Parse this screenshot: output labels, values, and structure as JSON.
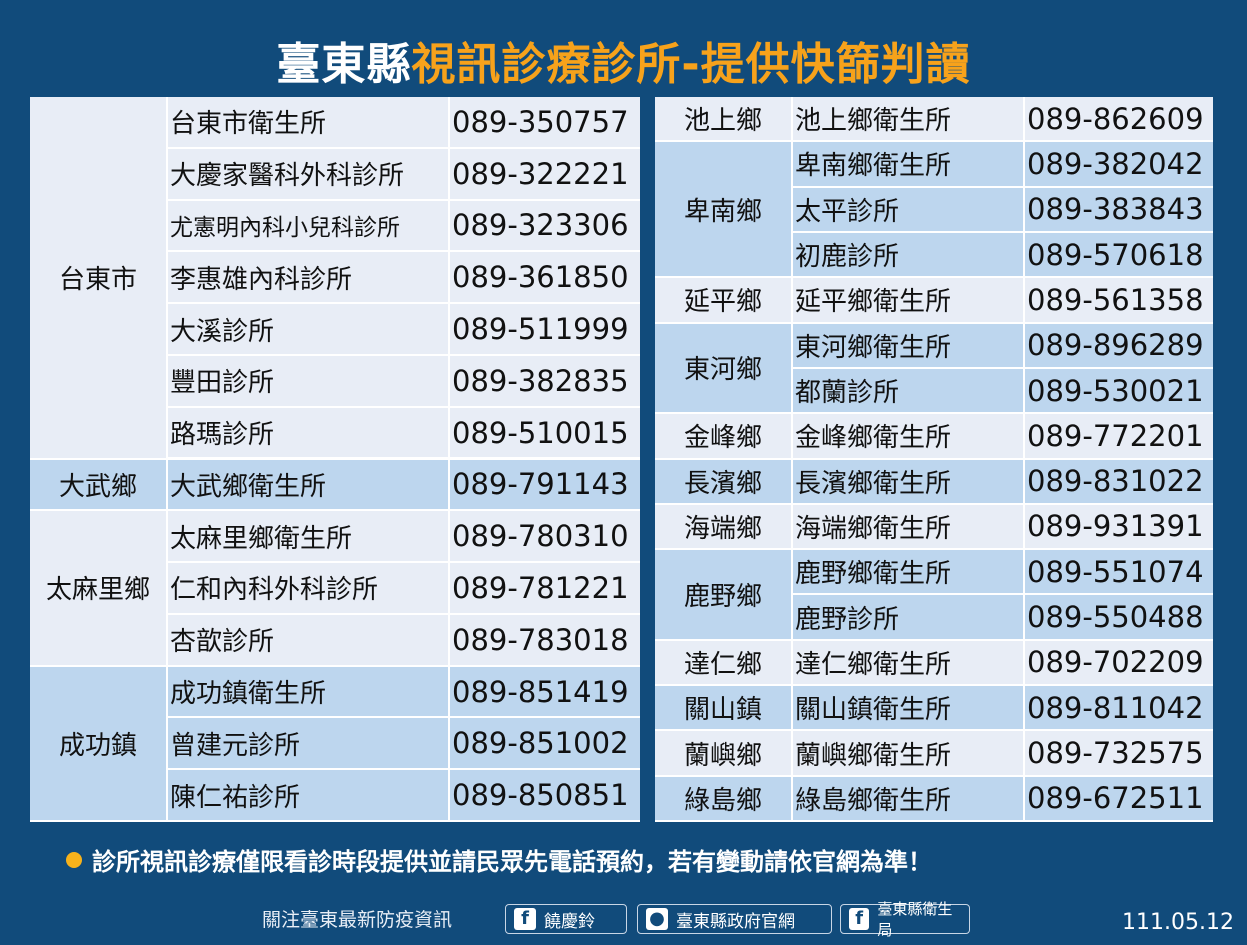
{
  "header": {
    "title_part1": "臺東縣",
    "title_part2": "視訊診療診所-提供快篩判讀"
  },
  "left_table": {
    "groups": [
      {
        "township": "台東市",
        "rows": [
          [
            "台東市衛生所",
            "089-350757"
          ],
          [
            "大慶家醫科外科診所",
            "089-322221"
          ],
          [
            "尤憲明內科小兒科診所",
            "089-323306"
          ],
          [
            "李惠雄內科診所",
            "089-361850"
          ],
          [
            "大溪診所",
            "089-511999"
          ],
          [
            "豐田診所",
            "089-382835"
          ],
          [
            "路瑪診所",
            "089-510015"
          ]
        ]
      },
      {
        "township": "大武鄉",
        "rows": [
          [
            "大武鄉衛生所",
            "089-791143"
          ]
        ]
      },
      {
        "township": "太麻里鄉",
        "rows": [
          [
            "太麻里鄉衛生所",
            "089-780310"
          ],
          [
            "仁和內科外科診所",
            "089-781221"
          ],
          [
            "杏歆診所",
            "089-783018"
          ]
        ]
      },
      {
        "township": "成功鎮",
        "rows": [
          [
            "成功鎮衛生所",
            "089-851419"
          ],
          [
            "曾建元診所",
            "089-851002"
          ],
          [
            "陳仁祐診所",
            "089-850851"
          ]
        ]
      }
    ]
  },
  "right_table": {
    "groups": [
      {
        "township": "池上鄉",
        "rows": [
          [
            "池上鄉衛生所",
            "089-862609"
          ]
        ]
      },
      {
        "township": "卑南鄉",
        "rows": [
          [
            "卑南鄉衛生所",
            "089-382042"
          ],
          [
            "太平診所",
            "089-383843"
          ],
          [
            "初鹿診所",
            "089-570618"
          ]
        ]
      },
      {
        "township": "延平鄉",
        "rows": [
          [
            "延平鄉衛生所",
            "089-561358"
          ]
        ]
      },
      {
        "township": "東河鄉",
        "rows": [
          [
            "東河鄉衛生所",
            "089-896289"
          ],
          [
            "都蘭診所",
            "089-530021"
          ]
        ]
      },
      {
        "township": "金峰鄉",
        "rows": [
          [
            "金峰鄉衛生所",
            "089-772201"
          ]
        ]
      },
      {
        "township": "長濱鄉",
        "rows": [
          [
            "長濱鄉衛生所",
            "089-831022"
          ]
        ]
      },
      {
        "township": "海端鄉",
        "rows": [
          [
            "海端鄉衛生所",
            "089-931391"
          ]
        ]
      },
      {
        "township": "鹿野鄉",
        "rows": [
          [
            "鹿野鄉衛生所",
            "089-551074"
          ],
          [
            "鹿野診所",
            "089-550488"
          ]
        ]
      },
      {
        "township": "達仁鄉",
        "rows": [
          [
            "達仁鄉衛生所",
            "089-702209"
          ]
        ]
      },
      {
        "township": "關山鎮",
        "rows": [
          [
            "關山鎮衛生所",
            "089-811042"
          ]
        ]
      },
      {
        "township": "蘭嶼鄉",
        "rows": [
          [
            "蘭嶼鄉衛生所",
            "089-732575"
          ]
        ]
      },
      {
        "township": "綠島鄉",
        "rows": [
          [
            "綠島鄉衛生所",
            "089-672511"
          ]
        ]
      }
    ]
  },
  "note": "診所視訊診療僅限看診時段提供並請民眾先電話預約，若有變動請依官網為準！",
  "footer": {
    "follow": "關注臺東最新防疫資訊",
    "links": [
      "饒慶鈴",
      "臺東縣政府官網",
      "臺東縣衛生局"
    ],
    "date": "111.05.12"
  }
}
